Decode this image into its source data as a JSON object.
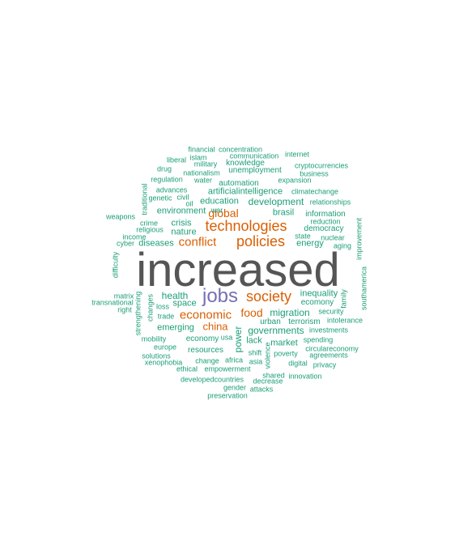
{
  "palette": {
    "teal": "#1b9e77",
    "orange": "#d95f02",
    "purple": "#7570b3",
    "gray": "#555555"
  },
  "words": [
    {
      "text": "increased",
      "color": "gray"
    },
    {
      "text": "jobs",
      "color": "purple"
    },
    {
      "text": "technologies",
      "color": "orange"
    },
    {
      "text": "policies",
      "color": "orange"
    },
    {
      "text": "society",
      "color": "orange"
    },
    {
      "text": "conflict",
      "color": "orange"
    },
    {
      "text": "economic",
      "color": "orange"
    },
    {
      "text": "global",
      "color": "orange"
    },
    {
      "text": "food",
      "color": "orange"
    },
    {
      "text": "china",
      "color": "orange"
    },
    {
      "text": "brasil",
      "color": "teal"
    },
    {
      "text": "development",
      "color": "teal"
    },
    {
      "text": "education",
      "color": "teal"
    },
    {
      "text": "artificialintelligence",
      "color": "teal"
    },
    {
      "text": "environment",
      "color": "teal"
    },
    {
      "text": "health",
      "color": "teal"
    },
    {
      "text": "migration",
      "color": "teal"
    },
    {
      "text": "governments",
      "color": "teal"
    },
    {
      "text": "power",
      "color": "teal"
    },
    {
      "text": "space",
      "color": "teal"
    },
    {
      "text": "emerging",
      "color": "teal"
    },
    {
      "text": "energy",
      "color": "teal"
    },
    {
      "text": "inequality",
      "color": "teal"
    },
    {
      "text": "market",
      "color": "teal"
    },
    {
      "text": "lack",
      "color": "teal"
    },
    {
      "text": "crisis",
      "color": "teal"
    },
    {
      "text": "nature",
      "color": "teal"
    },
    {
      "text": "diseases",
      "color": "teal"
    },
    {
      "text": "information",
      "color": "teal"
    },
    {
      "text": "democracy",
      "color": "teal"
    },
    {
      "text": "automation",
      "color": "teal"
    },
    {
      "text": "urban",
      "color": "teal"
    },
    {
      "text": "terrorism",
      "color": "teal"
    },
    {
      "text": "ecomony",
      "color": "teal"
    },
    {
      "text": "economy",
      "color": "teal"
    },
    {
      "text": "resources",
      "color": "teal"
    },
    {
      "text": "reduction",
      "color": "teal"
    },
    {
      "text": "state",
      "color": "teal"
    },
    {
      "text": "security",
      "color": "teal"
    },
    {
      "text": "unemployment",
      "color": "teal"
    },
    {
      "text": "knowledge",
      "color": "teal"
    },
    {
      "text": "nationalism",
      "color": "teal"
    },
    {
      "text": "water",
      "color": "teal"
    },
    {
      "text": "war",
      "color": "teal"
    },
    {
      "text": "expansion",
      "color": "teal"
    },
    {
      "text": "military",
      "color": "teal"
    },
    {
      "text": "climatechange",
      "color": "teal"
    },
    {
      "text": "communication",
      "color": "teal"
    },
    {
      "text": "financial",
      "color": "teal"
    },
    {
      "text": "concentration",
      "color": "teal"
    },
    {
      "text": "internet",
      "color": "teal"
    },
    {
      "text": "islam",
      "color": "teal"
    },
    {
      "text": "liberal",
      "color": "teal"
    },
    {
      "text": "drug",
      "color": "teal"
    },
    {
      "text": "cryptocurrencies",
      "color": "teal"
    },
    {
      "text": "business",
      "color": "teal"
    },
    {
      "text": "regulation",
      "color": "teal"
    },
    {
      "text": "advances",
      "color": "teal"
    },
    {
      "text": "civil",
      "color": "teal"
    },
    {
      "text": "genetic",
      "color": "teal"
    },
    {
      "text": "oil",
      "color": "teal"
    },
    {
      "text": "relationships",
      "color": "teal"
    },
    {
      "text": "traditional",
      "color": "teal"
    },
    {
      "text": "weapons",
      "color": "teal"
    },
    {
      "text": "crime",
      "color": "teal"
    },
    {
      "text": "religious",
      "color": "teal"
    },
    {
      "text": "income",
      "color": "teal"
    },
    {
      "text": "cyber",
      "color": "teal"
    },
    {
      "text": "nuclear",
      "color": "teal"
    },
    {
      "text": "aging",
      "color": "teal"
    },
    {
      "text": "improvement",
      "color": "teal"
    },
    {
      "text": "difficulty",
      "color": "teal"
    },
    {
      "text": "southamerica",
      "color": "teal"
    },
    {
      "text": "family",
      "color": "teal"
    },
    {
      "text": "matrix",
      "color": "teal"
    },
    {
      "text": "transnational",
      "color": "teal"
    },
    {
      "text": "right",
      "color": "teal"
    },
    {
      "text": "loss",
      "color": "teal"
    },
    {
      "text": "changes",
      "color": "teal"
    },
    {
      "text": "strengthening",
      "color": "teal"
    },
    {
      "text": "trade",
      "color": "teal"
    },
    {
      "text": "intolerance",
      "color": "teal"
    },
    {
      "text": "investments",
      "color": "teal"
    },
    {
      "text": "spending",
      "color": "teal"
    },
    {
      "text": "circulareconomy",
      "color": "teal"
    },
    {
      "text": "mobility",
      "color": "teal"
    },
    {
      "text": "usa",
      "color": "teal"
    },
    {
      "text": "shift",
      "color": "teal"
    },
    {
      "text": "europe",
      "color": "teal"
    },
    {
      "text": "poverty",
      "color": "teal"
    },
    {
      "text": "agreements",
      "color": "teal"
    },
    {
      "text": "solutions",
      "color": "teal"
    },
    {
      "text": "change",
      "color": "teal"
    },
    {
      "text": "africa",
      "color": "teal"
    },
    {
      "text": "asia",
      "color": "teal"
    },
    {
      "text": "violence",
      "color": "teal"
    },
    {
      "text": "digital",
      "color": "teal"
    },
    {
      "text": "privacy",
      "color": "teal"
    },
    {
      "text": "xenophobia",
      "color": "teal"
    },
    {
      "text": "ethical",
      "color": "teal"
    },
    {
      "text": "empowerment",
      "color": "teal"
    },
    {
      "text": "shared",
      "color": "teal"
    },
    {
      "text": "innovation",
      "color": "teal"
    },
    {
      "text": "developedcountries",
      "color": "teal"
    },
    {
      "text": "decrease",
      "color": "teal"
    },
    {
      "text": "gender",
      "color": "teal"
    },
    {
      "text": "attacks",
      "color": "teal"
    },
    {
      "text": "preservation",
      "color": "teal"
    }
  ]
}
